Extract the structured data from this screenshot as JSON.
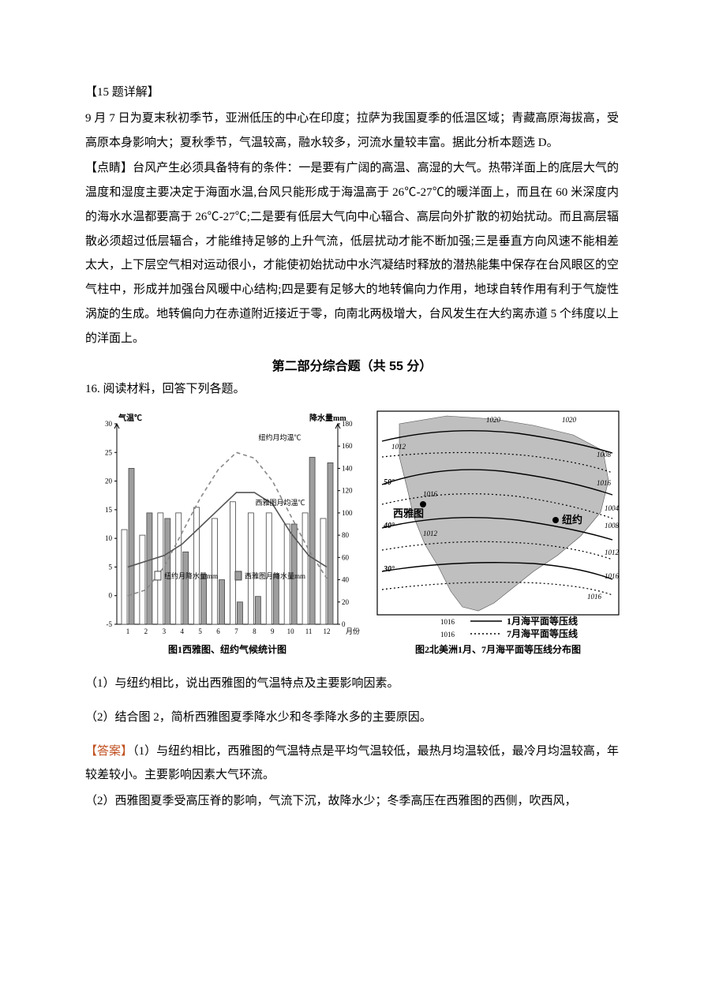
{
  "q15": {
    "title": "【15 题详解】",
    "body": "9 月 7 日为夏末秋初季节，亚洲低压的中心在印度；拉萨为我国夏季的低温区域；青藏高原海拔高，受高原本身影响大；夏秋季节，气温较高，融水较多，河流水量较丰富。据此分析本题选 D。"
  },
  "tip": {
    "title": "【点睛】",
    "body": "台风产生必须具备特有的条件：一是要有广阔的高温、高湿的大气。热带洋面上的底层大气的温度和湿度主要决定于海面水温,台风只能形成于海温高于 26℃-27℃的暖洋面上，而且在 60 米深度内的海水水温都要高于 26℃-27℃;二是要有低层大气向中心辐合、高层向外扩散的初始扰动。而且高层辐散必须超过低层辐合，才能维持足够的上升气流，低层扰动才能不断加强;三是垂直方向风速不能相差太大，上下层空气相对运动很小，才能使初始扰动中水汽凝结时释放的潜热能集中保存在台风眼区的空气柱中，形成并加强台风暖中心结构;四是要有足够大的地转偏向力作用，地球自转作用有利于气旋性涡旋的生成。地转偏向力在赤道附近接近于零，向南北两极增大，台风发生在大约离赤道 5 个纬度以上的洋面上。"
  },
  "section_title": "第二部分综合题（共 55 分）",
  "q16": {
    "prompt": "16. 阅读材料，回答下列各题。",
    "sub1": "（1）与纽约相比，说出西雅图的气温特点及主要影响因素。",
    "sub2": "（2）结合图 2，简析西雅图夏季降水少和冬季降水多的主要原因。",
    "ans_label": "【答案】",
    "ans1": "（1）与纽约相比，西雅图的气温特点是平均气温较低，最热月均温较低，最冷月均温较高，年较差较小。主要影响因素大气环流。",
    "ans2": "（2）西雅图夏季受高压脊的影响，气流下沉，故降水少；冬季高压在西雅图的西侧，吹西风，"
  },
  "chart1": {
    "type": "combo-line-bar",
    "title_y_left": "气温℃",
    "title_y_right": "降水量mm",
    "x_label": "月份",
    "caption": "图1西雅图、纽约气候统计图",
    "months": [
      "1",
      "2",
      "3",
      "4",
      "5",
      "6",
      "7",
      "8",
      "9",
      "10",
      "11",
      "12"
    ],
    "temp_ticks": [
      -5,
      0,
      5,
      10,
      15,
      20,
      25,
      30
    ],
    "precip_ticks": [
      0,
      20,
      40,
      60,
      80,
      100,
      120,
      140,
      160,
      180
    ],
    "ny_temp_label": "纽约月均温℃",
    "sea_temp_label": "西雅图月均温℃",
    "ny_precip_label": "纽约月降水量mm",
    "sea_precip_label": "西雅图月降水量mm",
    "ny_temp": [
      0,
      1,
      5,
      11,
      17,
      22,
      25,
      24,
      20,
      14,
      8,
      3
    ],
    "sea_temp": [
      5,
      6,
      7,
      9,
      12,
      15,
      18,
      18,
      16,
      11,
      7,
      5
    ],
    "ny_precip": [
      85,
      80,
      100,
      100,
      105,
      95,
      110,
      100,
      100,
      90,
      100,
      95
    ],
    "sea_precip": [
      140,
      100,
      95,
      65,
      45,
      40,
      20,
      25,
      45,
      90,
      150,
      145
    ],
    "line_ny_color": "#888888",
    "line_sea_color": "#555555",
    "bar_ny_color": "#ffffff",
    "bar_sea_color": "#9e9e9e",
    "axis_color": "#000000",
    "bar_border": "#444444",
    "bg": "#ffffff",
    "fontsize_axis": 9,
    "fontsize_caption": 12
  },
  "chart2": {
    "type": "map-isobars",
    "caption": "图2北美洲1月、7月海平面等压线分布图",
    "city_seattle": "西雅图",
    "city_ny": "纽约",
    "legend_jan": "1月海平面等压线",
    "legend_jul": "7月海平面等压线",
    "isobar_labels": [
      "1020",
      "1020",
      "1012",
      "1008",
      "1016",
      "1004",
      "1008",
      "1016",
      "1012",
      "1012",
      "1016",
      "1016"
    ],
    "lat_labels": [
      "50°",
      "40°",
      "30°"
    ],
    "land_color": "#bfbfbf",
    "sea_color": "#ffffff",
    "line_solid": "#000000",
    "line_dot": "#000000",
    "fontsize_caption": 12,
    "fontsize_label": 10
  }
}
